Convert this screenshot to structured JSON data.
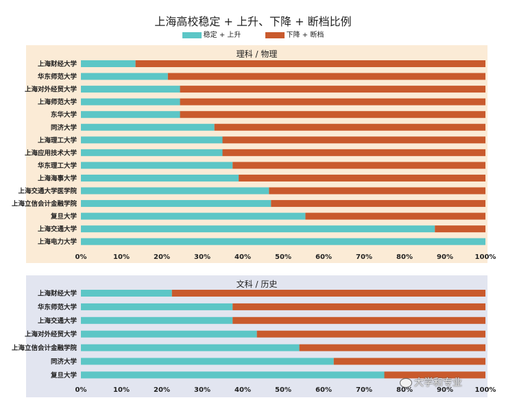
{
  "colors": {
    "teal": "#5cc6c6",
    "rust": "#c95a2d"
  },
  "legend": [
    {
      "label": "稳定 + 上升",
      "color": "#5cc6c6"
    },
    {
      "label": "下降 + 断档",
      "color": "#c95a2d"
    }
  ],
  "watermark": "大学和专业",
  "chart_data": [
    {
      "type": "bar",
      "stacked": true,
      "orientation": "horizontal",
      "title": "上海高校稳定 + 上升、下降 + 断档比例",
      "panel_title": "理科 / 物理",
      "categories": [
        "上海财经大学",
        "华东师范大学",
        "上海对外经贸大学",
        "上海师范大学",
        "东华大学",
        "同济大学",
        "上海理工大学",
        "上海应用技术大学",
        "华东理工大学",
        "上海海事大学",
        "上海交通大学医学院",
        "上海立信会计金融学院",
        "复旦大学",
        "上海交通大学",
        "上海电力大学"
      ],
      "series": [
        {
          "name": "稳定 + 上升",
          "values": [
            13.5,
            21.5,
            24.5,
            24.5,
            24.5,
            33,
            35,
            35,
            37.5,
            39,
            46.5,
            47,
            55.5,
            87.5,
            100
          ]
        },
        {
          "name": "下降 + 断档",
          "values": [
            86.5,
            78.5,
            75.5,
            75.5,
            75.5,
            67,
            65,
            65,
            62.5,
            61,
            53.5,
            53,
            44.5,
            12.5,
            0
          ]
        }
      ],
      "xlim": [
        0,
        100
      ],
      "xticks": [
        "0%",
        "10%",
        "20%",
        "30%",
        "40%",
        "50%",
        "60%",
        "70%",
        "80%",
        "90%",
        "100%"
      ]
    },
    {
      "type": "bar",
      "stacked": true,
      "orientation": "horizontal",
      "panel_title": "文科 / 历史",
      "categories": [
        "上海财经大学",
        "华东师范大学",
        "上海交通大学",
        "上海对外经贸大学",
        "上海立信会计金融学院",
        "同济大学",
        "复旦大学"
      ],
      "series": [
        {
          "name": "稳定 + 上升",
          "values": [
            22.5,
            37.5,
            37.5,
            43.5,
            54,
            62.5,
            75
          ]
        },
        {
          "name": "下降 + 断档",
          "values": [
            77.5,
            62.5,
            62.5,
            56.5,
            46,
            37.5,
            25
          ]
        }
      ],
      "xlim": [
        0,
        100
      ],
      "xticks": [
        "0%",
        "10%",
        "20%",
        "30%",
        "40%",
        "50%",
        "60%",
        "70%",
        "80%",
        "90%",
        "100%"
      ]
    }
  ]
}
